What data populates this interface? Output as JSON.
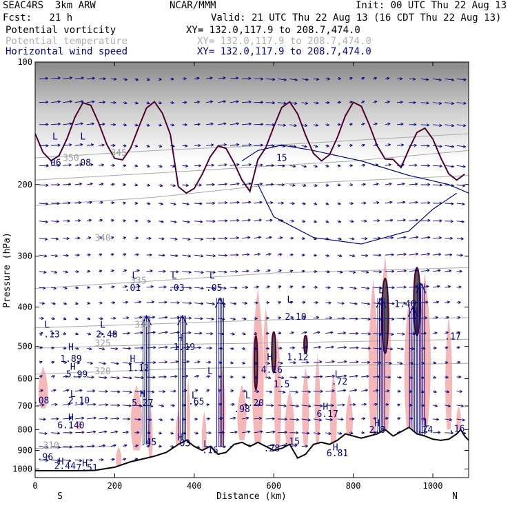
{
  "header": {
    "model": "SEAC4RS  3km ARW",
    "org": "NCAR/MMM",
    "init": "Init: 00 UTC Thu 22 Aug 13",
    "fcst": "Fcst:   21 h",
    "valid": "Valid: 21 UTC Thu 22 Aug 13 (16 CDT Thu 22 Aug 13)",
    "fields": [
      {
        "label": "Potential vorticity",
        "xy": "XY= 132.0,117.9 to 208.7,474.0",
        "color": "#000000"
      },
      {
        "label": "Potential temperature",
        "xy": "XY= 132.0,117.9 to 208.7,474.0",
        "color": "#b0b0b0"
      },
      {
        "label": "Horizontal wind speed",
        "xy": "XY= 132.0,117.9 to 208.7,474.0",
        "color": "#000080"
      }
    ]
  },
  "chart_data": {
    "type": "cross-section",
    "xlabel": "Distance (km)",
    "ylabel": "Pressure (hPa)",
    "xlim": [
      0,
      1090
    ],
    "ylim": [
      1050,
      100
    ],
    "y_log": true,
    "x_ticks": [
      "0",
      "200",
      "400",
      "600",
      "800",
      "1000"
    ],
    "y_ticks": [
      "100",
      "200",
      "300",
      "400",
      "500",
      "600",
      "700",
      "800",
      "900",
      "1000"
    ],
    "x_end_labels": {
      "left": "S",
      "right": "N"
    },
    "terrain_surface_pressure": [
      [
        0,
        1010
      ],
      [
        100,
        1010
      ],
      [
        150,
        1008
      ],
      [
        200,
        990
      ],
      [
        240,
        960
      ],
      [
        270,
        945
      ],
      [
        300,
        930
      ],
      [
        330,
        910
      ],
      [
        360,
        870
      ],
      [
        380,
        850
      ],
      [
        400,
        880
      ],
      [
        420,
        900
      ],
      [
        440,
        880
      ],
      [
        460,
        920
      ],
      [
        480,
        910
      ],
      [
        500,
        870
      ],
      [
        520,
        860
      ],
      [
        540,
        880
      ],
      [
        560,
        860
      ],
      [
        580,
        880
      ],
      [
        600,
        900
      ],
      [
        620,
        890
      ],
      [
        640,
        870
      ],
      [
        660,
        940
      ],
      [
        680,
        920
      ],
      [
        700,
        870
      ],
      [
        720,
        860
      ],
      [
        740,
        870
      ],
      [
        760,
        850
      ],
      [
        780,
        820
      ],
      [
        800,
        830
      ],
      [
        820,
        840
      ],
      [
        840,
        830
      ],
      [
        860,
        820
      ],
      [
        880,
        800
      ],
      [
        900,
        830
      ],
      [
        920,
        810
      ],
      [
        940,
        790
      ],
      [
        960,
        820
      ],
      [
        980,
        830
      ],
      [
        1000,
        845
      ],
      [
        1020,
        850
      ],
      [
        1040,
        845
      ],
      [
        1060,
        820
      ],
      [
        1070,
        800
      ],
      [
        1080,
        830
      ],
      [
        1090,
        850
      ]
    ],
    "theta_isentropes_K": [
      310,
      320,
      325,
      330,
      335,
      340,
      345,
      350
    ],
    "theta_labels": [
      {
        "text": "350",
        "x": 90,
        "p": 175
      },
      {
        "text": "345",
        "x": 210,
        "p": 170
      },
      {
        "text": "340",
        "x": 170,
        "p": 275
      },
      {
        "text": "335",
        "x": 260,
        "p": 350
      },
      {
        "text": "330",
        "x": 270,
        "p": 450
      },
      {
        "text": "325",
        "x": 170,
        "p": 500
      },
      {
        "text": "320",
        "x": 170,
        "p": 585
      },
      {
        "text": "310",
        "x": 40,
        "p": 890
      }
    ],
    "pv_extrema": [
      {
        "text": "L",
        "x": 50,
        "p": 155
      },
      {
        "text": ".06",
        "x": 45,
        "p": 180
      },
      {
        "text": "L",
        "x": 120,
        "p": 155
      },
      {
        "text": ".08",
        "x": 120,
        "p": 180
      },
      {
        "text": "L",
        "x": 250,
        "p": 340
      },
      {
        "text": ".01",
        "x": 245,
        "p": 365
      },
      {
        "text": "L",
        "x": 350,
        "p": 340
      },
      {
        "text": ".03",
        "x": 355,
        "p": 365
      },
      {
        "text": "L",
        "x": 445,
        "p": 340
      },
      {
        "text": ".05",
        "x": 450,
        "p": 365
      },
      {
        "text": "L",
        "x": 30,
        "p": 450
      },
      {
        "text": "-.13",
        "x": 35,
        "p": 475
      },
      {
        "text": "L",
        "x": 170,
        "p": 450
      },
      {
        "text": "2.48",
        "x": 180,
        "p": 475
      },
      {
        "text": "H",
        "x": 365,
        "p": 485
      },
      {
        "text": "1.19",
        "x": 375,
        "p": 510
      },
      {
        "text": "H",
        "x": 90,
        "p": 510
      },
      {
        "text": "1.89",
        "x": 90,
        "p": 545
      },
      {
        "text": "H",
        "x": 245,
        "p": 545
      },
      {
        "text": "1.12",
        "x": 260,
        "p": 575
      },
      {
        "text": "H",
        "x": 95,
        "p": 570
      },
      {
        "text": "5.99",
        "x": 105,
        "p": 595
      },
      {
        "text": "L",
        "x": 440,
        "p": 585
      },
      {
        "text": "H",
        "x": 590,
        "p": 540
      },
      {
        "text": "1.12",
        "x": 660,
        "p": 540
      },
      {
        "text": "4.16",
        "x": 595,
        "p": 580
      },
      {
        "text": "1.5",
        "x": 620,
        "p": 630
      },
      {
        "text": "L",
        "x": 760,
        "p": 595
      },
      {
        "text": ".72",
        "x": 765,
        "p": 620
      },
      {
        "text": "L",
        "x": 640,
        "p": 390
      },
      {
        "text": "2.10",
        "x": 655,
        "p": 430
      },
      {
        "text": "L",
        "x": 870,
        "p": 370
      },
      {
        "text": "1.46",
        "x": 930,
        "p": 400
      },
      {
        "text": ".17",
        "x": 1050,
        "p": 480
      },
      {
        "text": "H",
        "x": 270,
        "p": 665
      },
      {
        "text": "5.27",
        "x": 270,
        "p": 700
      },
      {
        "text": "L",
        "x": 400,
        "p": 670
      },
      {
        "text": ".65",
        "x": 405,
        "p": 695
      },
      {
        "text": "L",
        "x": 535,
        "p": 670
      },
      {
        "text": ".20",
        "x": 555,
        "p": 700
      },
      {
        "text": ".98",
        "x": 520,
        "p": 725
      },
      {
        "text": "L",
        "x": 95,
        "p": 665
      },
      {
        "text": "2.10",
        "x": 110,
        "p": 690
      },
      {
        "text": ".08",
        "x": 15,
        "p": 690
      },
      {
        "text": "H",
        "x": 730,
        "p": 715
      },
      {
        "text": "6.17",
        "x": 735,
        "p": 745
      },
      {
        "text": "H",
        "x": 90,
        "p": 760
      },
      {
        "text": "6.140",
        "x": 90,
        "p": 795
      },
      {
        "text": "H",
        "x": 860,
        "p": 785
      },
      {
        "text": "2.8",
        "x": 860,
        "p": 815
      },
      {
        "text": "L",
        "x": 985,
        "p": 785
      },
      {
        "text": ".74",
        "x": 980,
        "p": 815
      },
      {
        "text": ".16",
        "x": 1060,
        "p": 810
      },
      {
        "text": ".45",
        "x": 285,
        "p": 875
      },
      {
        "text": "H",
        "x": 365,
        "p": 850
      },
      {
        "text": ".03",
        "x": 370,
        "p": 880
      },
      {
        "text": "L",
        "x": 430,
        "p": 885
      },
      {
        "text": ".16",
        "x": 440,
        "p": 915
      },
      {
        "text": ".15",
        "x": 645,
        "p": 870
      },
      {
        "text": ".28",
        "x": 595,
        "p": 905
      },
      {
        "text": "H",
        "x": 755,
        "p": 900
      },
      {
        "text": "6.81",
        "x": 760,
        "p": 930
      },
      {
        "text": ".96",
        "x": 25,
        "p": 950
      },
      {
        "text": "H",
        "x": 65,
        "p": 975
      },
      {
        "text": "2.44",
        "x": 75,
        "p": 1000
      },
      {
        "text": "H",
        "x": 125,
        "p": 985
      },
      {
        "text": "7.51",
        "x": 130,
        "p": 1010
      }
    ],
    "wind_speed_contours_m_s": [
      15,
      20
    ],
    "wind_speed_contour_labels": [
      {
        "text": "15",
        "x": 620,
        "p": 175
      }
    ],
    "notes": "Shaded pink = positive PV regions; grey shading near tropopause = high PV; dark purple contours = PV > 2; blue arrows = circulation vectors"
  }
}
